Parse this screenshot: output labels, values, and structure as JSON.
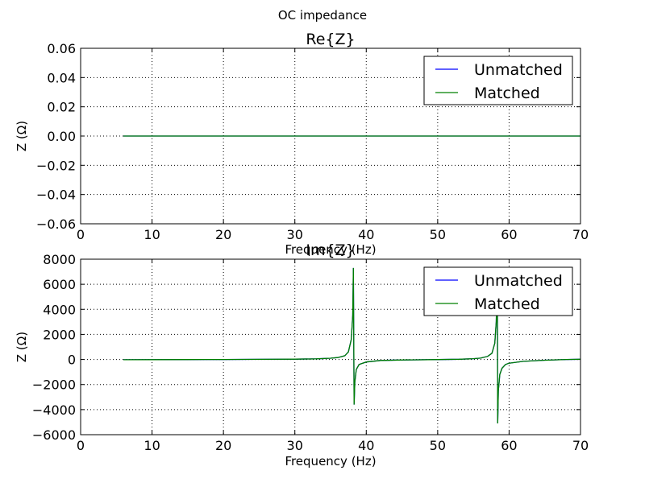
{
  "figure": {
    "suptitle": "OC impedance"
  },
  "colors": {
    "unmatched": "#0000ff",
    "matched": "#008000",
    "grid": "#000000",
    "axes": "#000000",
    "background": "#ffffff"
  },
  "chart_data": [
    {
      "type": "line",
      "title": "Re{Z}",
      "xlabel": "Frequency (Hz)",
      "ylabel": "Z (Ω)",
      "xlim": [
        0,
        70
      ],
      "ylim": [
        -0.06,
        0.06
      ],
      "xticks": [
        "0",
        "10",
        "20",
        "30",
        "40",
        "50",
        "60",
        "70"
      ],
      "yticks": [
        "0.06",
        "0.04",
        "0.02",
        "0.00",
        "−0.02",
        "−0.04",
        "−0.06"
      ],
      "grid": true,
      "legend_position": "top-right",
      "series": [
        {
          "name": "Unmatched",
          "color": "#0000ff",
          "x": [
            6,
            70
          ],
          "y": [
            0,
            0
          ]
        },
        {
          "name": "Matched",
          "color": "#008000",
          "x": [
            6,
            70
          ],
          "y": [
            0,
            0
          ]
        }
      ]
    },
    {
      "type": "line",
      "title": "Im{Z}",
      "xlabel": "Frequency (Hz)",
      "ylabel": "Z (Ω)",
      "xlim": [
        0,
        70
      ],
      "ylim": [
        -6000,
        8000
      ],
      "xticks": [
        "0",
        "10",
        "20",
        "30",
        "40",
        "50",
        "60",
        "70"
      ],
      "yticks": [
        "8000",
        "6000",
        "4000",
        "2000",
        "0",
        "−2000",
        "−4000",
        "−6000"
      ],
      "grid": true,
      "legend_position": "top-right",
      "series": [
        {
          "name": "Unmatched",
          "color": "#0000ff",
          "x": [
            6,
            10,
            15,
            20,
            25,
            30,
            33,
            35,
            36,
            37,
            37.5,
            37.9,
            38.1,
            38.2,
            38.3,
            38.4,
            38.6,
            39,
            40,
            42,
            45,
            50,
            53,
            55,
            56,
            57,
            57.6,
            58,
            58.2,
            58.35,
            58.4,
            58.5,
            58.7,
            59,
            59.5,
            60,
            62,
            65,
            68,
            70
          ],
          "y": [
            -20,
            -15,
            -8,
            0,
            10,
            25,
            50,
            100,
            150,
            300,
            600,
            1600,
            3500,
            7300,
            -3600,
            -1800,
            -800,
            -400,
            -200,
            -80,
            -40,
            -10,
            20,
            60,
            110,
            250,
            500,
            1300,
            3000,
            7000,
            -5100,
            -2500,
            -1200,
            -700,
            -400,
            -300,
            -150,
            -60,
            0,
            20
          ]
        },
        {
          "name": "Matched",
          "color": "#008000",
          "x": [
            6,
            10,
            15,
            20,
            25,
            30,
            33,
            35,
            36,
            37,
            37.5,
            37.9,
            38.1,
            38.2,
            38.3,
            38.4,
            38.6,
            39,
            40,
            42,
            45,
            50,
            53,
            55,
            56,
            57,
            57.6,
            58,
            58.2,
            58.35,
            58.4,
            58.5,
            58.7,
            59,
            59.5,
            60,
            62,
            65,
            68,
            70
          ],
          "y": [
            -20,
            -15,
            -8,
            0,
            10,
            25,
            50,
            100,
            150,
            300,
            600,
            1600,
            3500,
            7300,
            -3600,
            -1800,
            -800,
            -400,
            -200,
            -80,
            -40,
            -10,
            20,
            60,
            110,
            250,
            500,
            1300,
            3000,
            7000,
            -5100,
            -2500,
            -1200,
            -700,
            -400,
            -300,
            -150,
            -60,
            0,
            20
          ]
        }
      ]
    }
  ]
}
